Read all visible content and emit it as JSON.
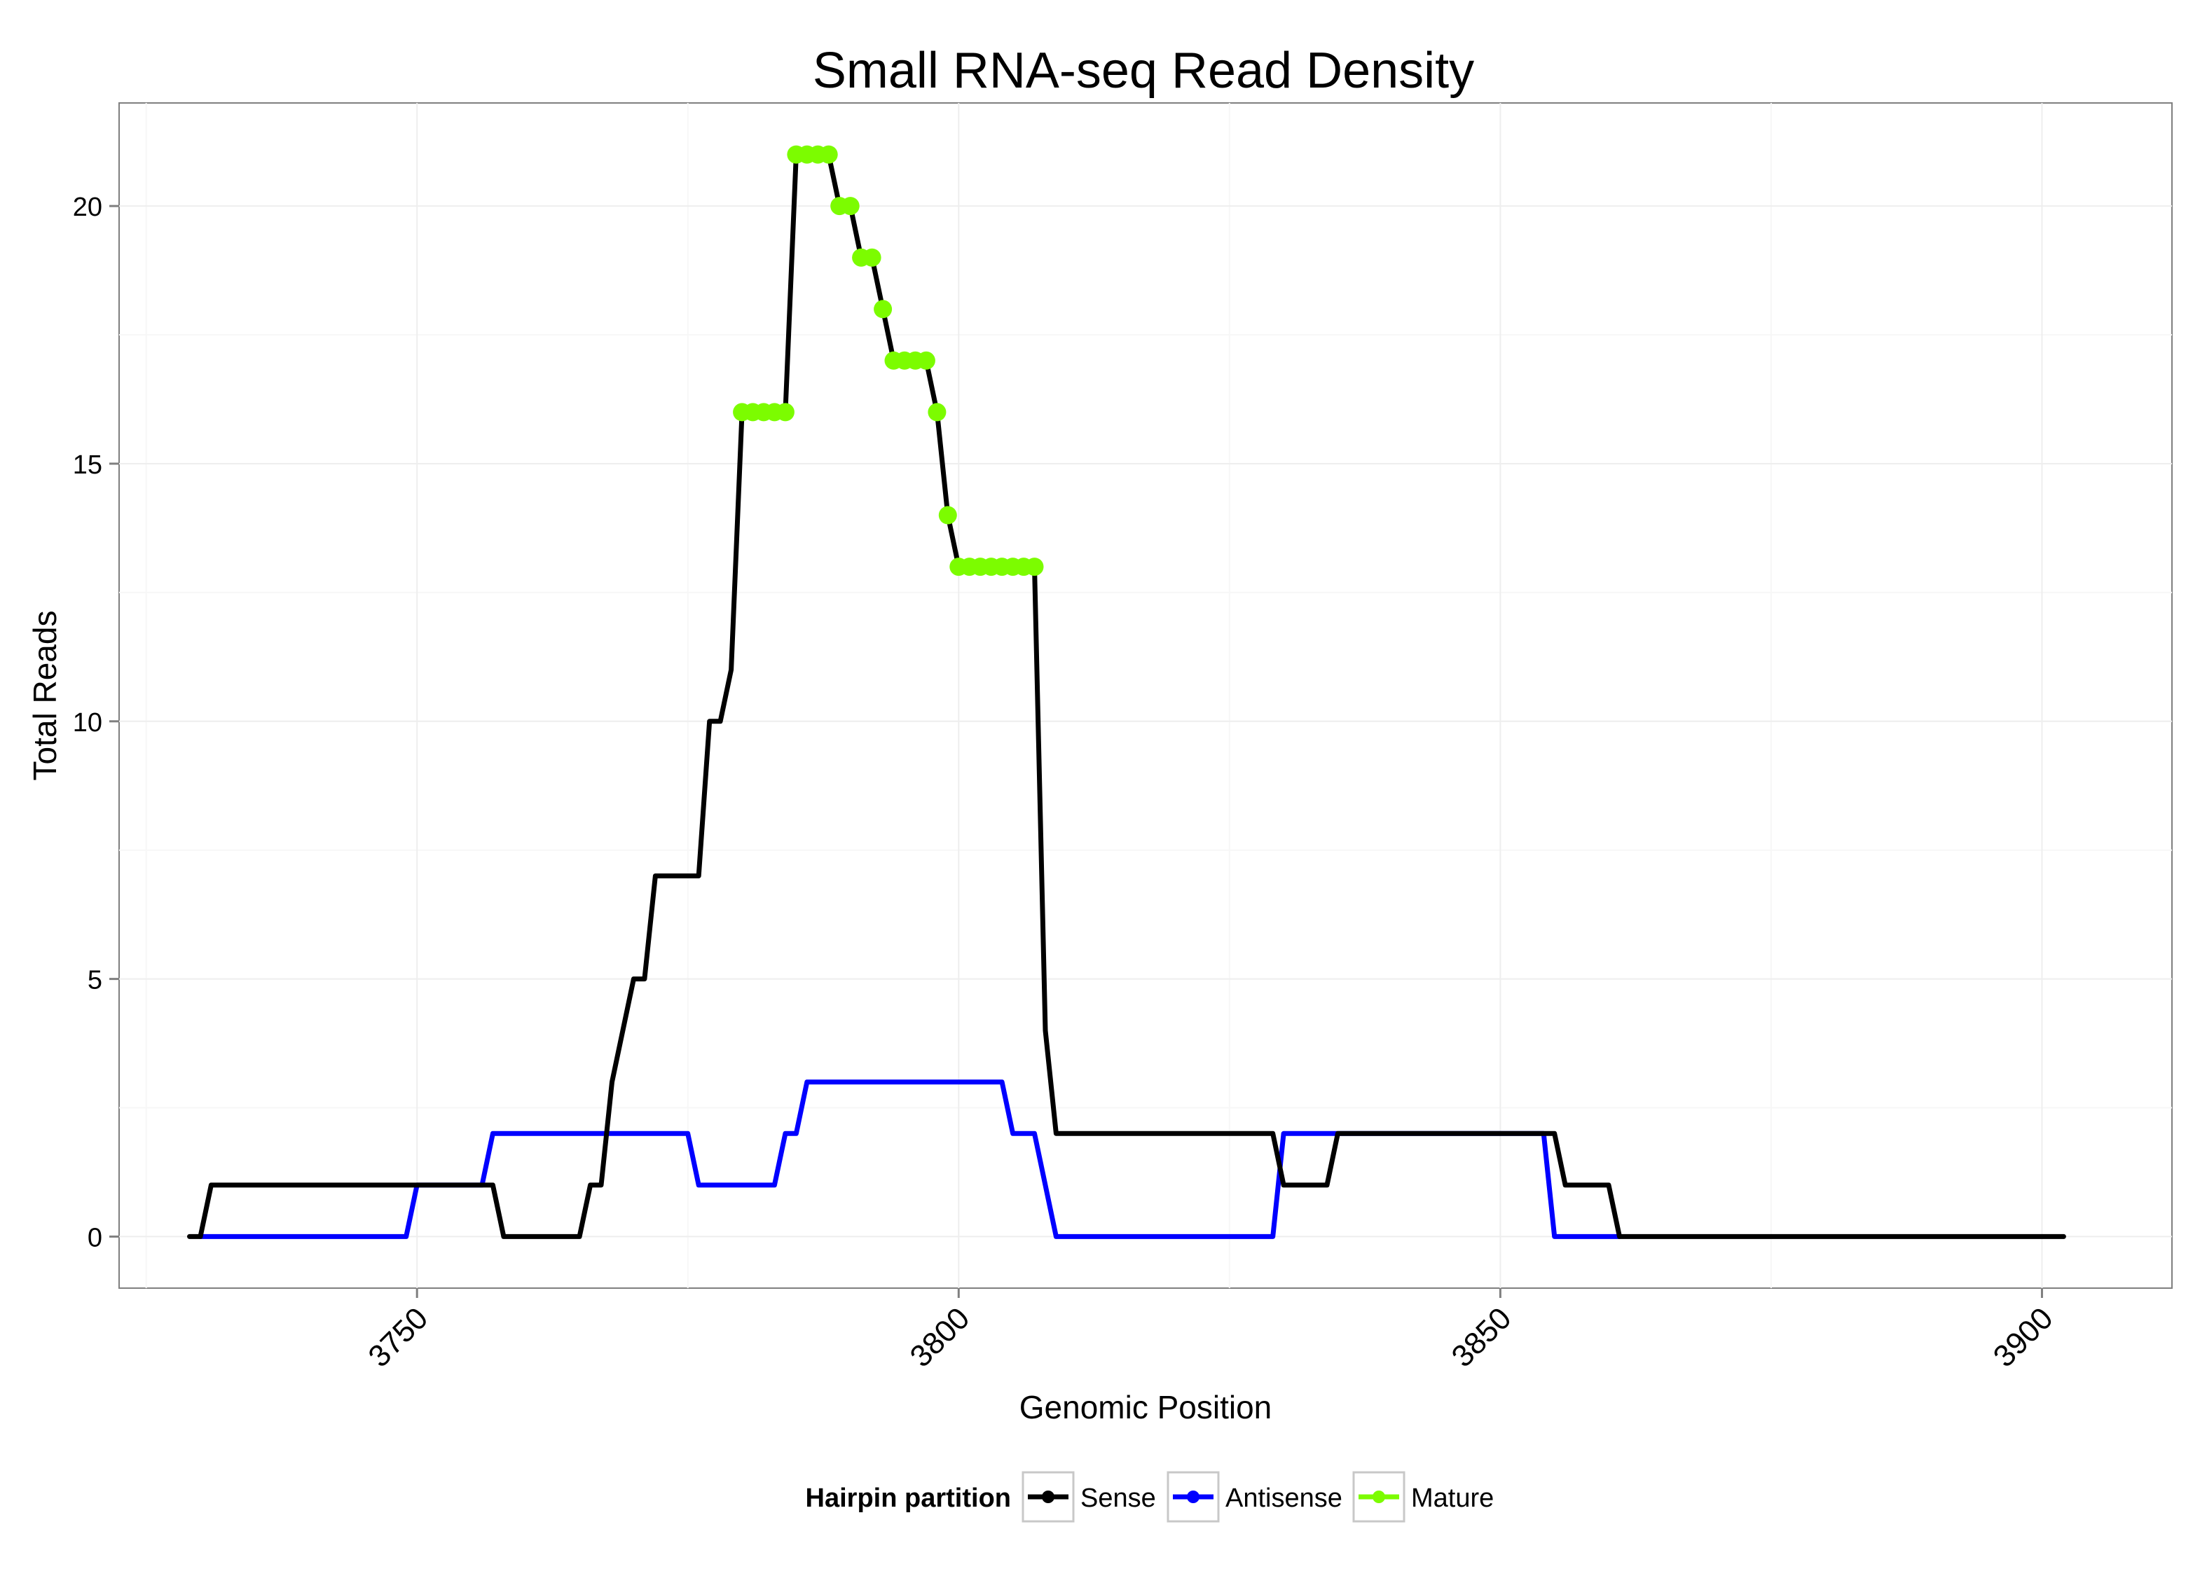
{
  "chart_data": {
    "type": "line",
    "title": "Small RNA-seq Read Density",
    "xlabel": "Genomic Position",
    "ylabel": "Total Reads",
    "xlim": [
      3722.5,
      3912
    ],
    "ylim": [
      -1,
      22
    ],
    "x_ticks": [
      3750,
      3800,
      3850,
      3900
    ],
    "y_ticks": [
      0,
      5,
      10,
      15,
      20
    ],
    "grid": true,
    "legend": {
      "title": "Hairpin partition",
      "position": "bottom",
      "entries": [
        {
          "name": "Sense",
          "color": "#000000"
        },
        {
          "name": "Antisense",
          "color": "#0000FF"
        },
        {
          "name": "Mature",
          "color": "#7CFC00"
        }
      ]
    },
    "series": [
      {
        "name": "Sense",
        "color": "#000000",
        "points": [
          [
            3729,
            0
          ],
          [
            3730,
            0
          ],
          [
            3731,
            1
          ],
          [
            3757,
            1
          ],
          [
            3758,
            0
          ],
          [
            3765,
            0
          ],
          [
            3766,
            1
          ],
          [
            3767,
            1
          ],
          [
            3768,
            3
          ],
          [
            3770,
            5
          ],
          [
            3771,
            5
          ],
          [
            3772,
            7
          ],
          [
            3776,
            7
          ],
          [
            3777,
            10
          ],
          [
            3778,
            10
          ],
          [
            3779,
            11
          ],
          [
            3780,
            16
          ],
          [
            3784,
            16
          ],
          [
            3785,
            21
          ],
          [
            3788,
            21
          ],
          [
            3789,
            20
          ],
          [
            3790,
            20
          ],
          [
            3791,
            19
          ],
          [
            3792,
            19
          ],
          [
            3793,
            18
          ],
          [
            3794,
            17
          ],
          [
            3797,
            17
          ],
          [
            3798,
            16
          ],
          [
            3799,
            14
          ],
          [
            3800,
            13
          ],
          [
            3807,
            13
          ],
          [
            3808,
            4
          ],
          [
            3809,
            2
          ],
          [
            3829,
            2
          ],
          [
            3830,
            1
          ],
          [
            3834,
            1
          ],
          [
            3835,
            2
          ],
          [
            3855,
            2
          ],
          [
            3856,
            1
          ],
          [
            3860,
            1
          ],
          [
            3861,
            0
          ],
          [
            3902,
            0
          ]
        ]
      },
      {
        "name": "Antisense",
        "color": "#0000FF",
        "points": [
          [
            3730,
            0
          ],
          [
            3749,
            0
          ],
          [
            3750,
            1
          ],
          [
            3756,
            1
          ],
          [
            3757,
            2
          ],
          [
            3775,
            2
          ],
          [
            3776,
            1
          ],
          [
            3783,
            1
          ],
          [
            3784,
            2
          ],
          [
            3785,
            2
          ],
          [
            3786,
            3
          ],
          [
            3804,
            3
          ],
          [
            3805,
            2
          ],
          [
            3807,
            2
          ],
          [
            3809,
            0
          ],
          [
            3829,
            0
          ],
          [
            3830,
            2
          ],
          [
            3854,
            2
          ],
          [
            3855,
            0
          ],
          [
            3861,
            0
          ]
        ]
      },
      {
        "name": "Mature",
        "color": "#7CFC00",
        "points": [
          [
            3780,
            16
          ],
          [
            3781,
            16
          ],
          [
            3782,
            16
          ],
          [
            3783,
            16
          ],
          [
            3784,
            16
          ],
          [
            3785,
            21
          ],
          [
            3786,
            21
          ],
          [
            3787,
            21
          ],
          [
            3788,
            21
          ],
          [
            3789,
            20
          ],
          [
            3790,
            20
          ],
          [
            3791,
            19
          ],
          [
            3792,
            19
          ],
          [
            3793,
            18
          ],
          [
            3794,
            17
          ],
          [
            3795,
            17
          ],
          [
            3796,
            17
          ],
          [
            3797,
            17
          ],
          [
            3798,
            16
          ],
          [
            3799,
            14
          ],
          [
            3800,
            13
          ],
          [
            3801,
            13
          ],
          [
            3802,
            13
          ],
          [
            3803,
            13
          ],
          [
            3804,
            13
          ],
          [
            3805,
            13
          ],
          [
            3806,
            13
          ],
          [
            3807,
            13
          ]
        ]
      }
    ]
  }
}
